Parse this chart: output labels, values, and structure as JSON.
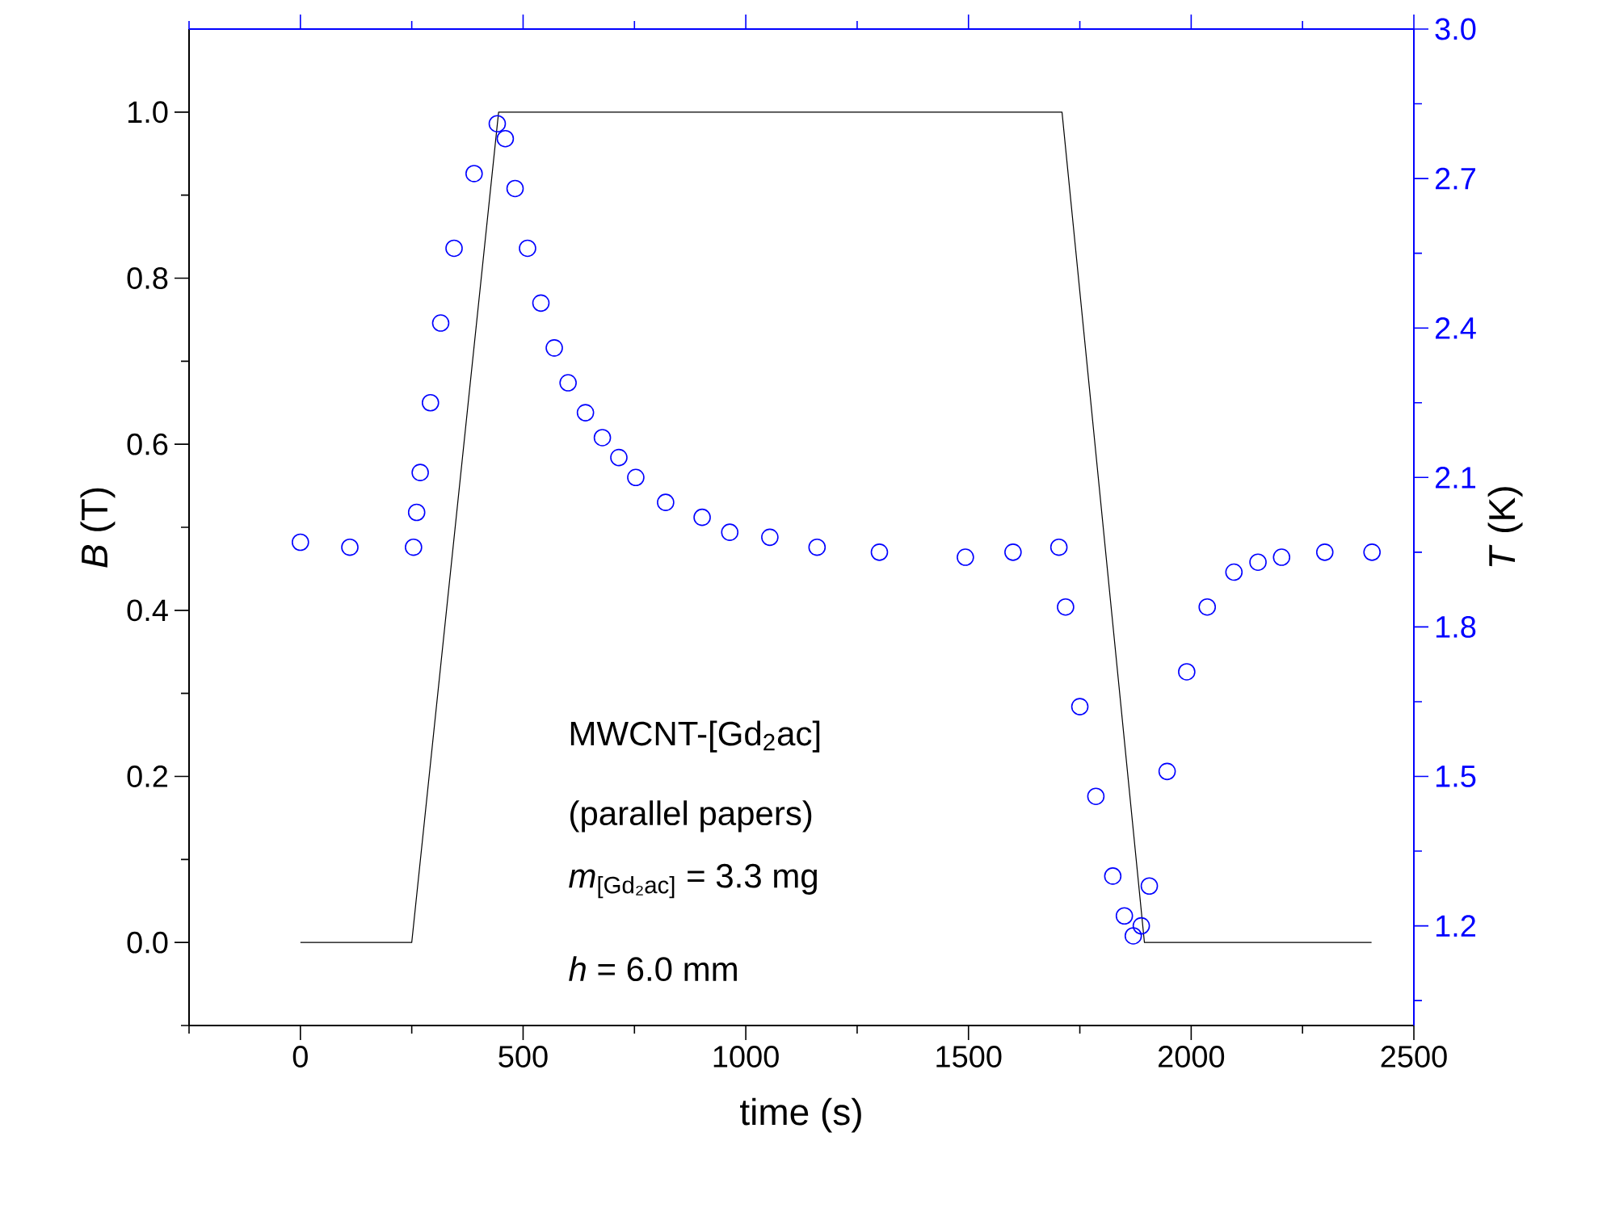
{
  "chart_data": {
    "type": "line",
    "xlabel": "time (s)",
    "ylabel": "*B* (T)",
    "y2label": "*T* (K)",
    "xlim": [
      -250,
      2500
    ],
    "xticks": [
      {
        "value": -250,
        "label": null
      },
      0,
      {
        "value": 250,
        "label": null
      },
      500,
      {
        "value": 750,
        "label": null
      },
      1000,
      {
        "value": 1250,
        "label": null
      },
      1500,
      {
        "value": 1750,
        "label": null
      },
      2000,
      {
        "value": 2250,
        "label": null
      },
      2500
    ],
    "ylim": [
      -0.1,
      1.1
    ],
    "yticks": [
      {
        "value": -0.1,
        "label": null
      },
      {
        "value": 0,
        "label": "0.0"
      },
      {
        "value": 0.1,
        "label": null
      },
      0.2,
      {
        "value": 0.3,
        "label": null
      },
      0.4,
      {
        "value": 0.5,
        "label": null
      },
      0.6,
      {
        "value": 0.7,
        "label": null
      },
      0.8,
      {
        "value": 0.9,
        "label": null
      },
      {
        "value": 1,
        "label": "1.0"
      }
    ],
    "y2lim": [
      1.0,
      3.0
    ],
    "y2ticks": [
      {
        "value": 1.05,
        "label": null
      },
      1.2,
      {
        "value": 1.35,
        "label": null
      },
      1.5,
      {
        "value": 1.65,
        "label": null
      },
      1.8,
      {
        "value": 1.95,
        "label": null
      },
      2.1,
      {
        "value": 2.25,
        "label": null
      },
      2.4,
      {
        "value": 2.55,
        "label": null
      },
      2.7,
      {
        "value": 2.85,
        "label": null
      },
      {
        "value": 3,
        "label": "3.0"
      }
    ],
    "series": [
      {
        "color": "#000000",
        "x": [
          0,
          250,
          445,
          1710,
          1895,
          2405
        ],
        "values": [
          0,
          0,
          1,
          1,
          0,
          0
        ]
      },
      {
        "type": "scatter",
        "axis": "y2",
        "marker": "circle",
        "color": "#0000ff",
        "x": [
          0,
          111,
          254,
          261,
          269,
          292,
          315,
          345,
          390,
          442,
          460,
          482,
          510,
          540,
          570,
          601,
          640,
          678,
          715,
          753,
          820,
          902,
          964,
          1054,
          1160,
          1300,
          1493,
          1600,
          1703,
          1718,
          1750,
          1786,
          1824,
          1850,
          1870,
          1888,
          1906,
          1946,
          1990,
          2036,
          2096,
          2150,
          2203,
          2300,
          2406
        ],
        "values": [
          1.97,
          1.96,
          1.96,
          2.03,
          2.11,
          2.25,
          2.41,
          2.56,
          2.71,
          2.81,
          2.78,
          2.68,
          2.56,
          2.45,
          2.36,
          2.29,
          2.23,
          2.18,
          2.14,
          2.1,
          2.05,
          2.02,
          1.99,
          1.98,
          1.96,
          1.95,
          1.94,
          1.95,
          1.96,
          1.84,
          1.64,
          1.46,
          1.3,
          1.22,
          1.18,
          1.2,
          1.28,
          1.51,
          1.71,
          1.84,
          1.91,
          1.93,
          1.94,
          1.95,
          1.95
        ]
      }
    ],
    "annotations": [
      "MWCNT-[Gd$_{2}$ac]",
      "(parallel papers)",
      "*m*$_{[Gd₂ac]}$ = 3.3 mg",
      "*h* = 6.0 mm"
    ]
  }
}
